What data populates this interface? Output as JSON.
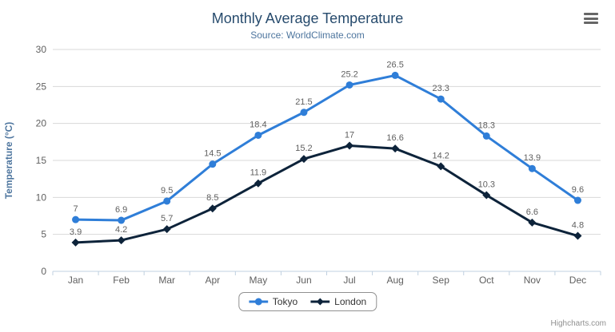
{
  "chart": {
    "title": "Monthly Average Temperature",
    "subtitle": "Source: WorldClimate.com",
    "credits": "Highcharts.com"
  },
  "chart_data": {
    "type": "line",
    "title": "Monthly Average Temperature",
    "subtitle": "Source: WorldClimate.com",
    "categories": [
      "Jan",
      "Feb",
      "Mar",
      "Apr",
      "May",
      "Jun",
      "Jul",
      "Aug",
      "Sep",
      "Oct",
      "Nov",
      "Dec"
    ],
    "series": [
      {
        "name": "Tokyo",
        "color": "#2f7ed8",
        "marker": "circle",
        "values": [
          7,
          6.9,
          9.5,
          14.5,
          18.4,
          21.5,
          25.2,
          26.5,
          23.3,
          18.3,
          13.9,
          9.6
        ]
      },
      {
        "name": "London",
        "color": "#0d233a",
        "marker": "diamond",
        "values": [
          3.9,
          4.2,
          5.7,
          8.5,
          11.9,
          15.2,
          17,
          16.6,
          14.2,
          10.3,
          6.6,
          4.8
        ]
      }
    ],
    "xlabel": "",
    "ylabel": "Temperature (°C)",
    "ylim": [
      0,
      30
    ],
    "ytick_interval": 5,
    "grid": true,
    "data_labels": true,
    "legend_position": "bottom"
  },
  "colors": {
    "title": "#274b6d",
    "subtitle": "#4d759e",
    "y_axis_title": "#4d759e",
    "axis_label": "#606060",
    "data_label": "#606060",
    "gridline": "#d8d8d8",
    "axis_line": "#c0d0e0",
    "legend_border": "#909090",
    "legend_text": "#333333",
    "credits": "#909090",
    "menu_icon": "#666666"
  }
}
